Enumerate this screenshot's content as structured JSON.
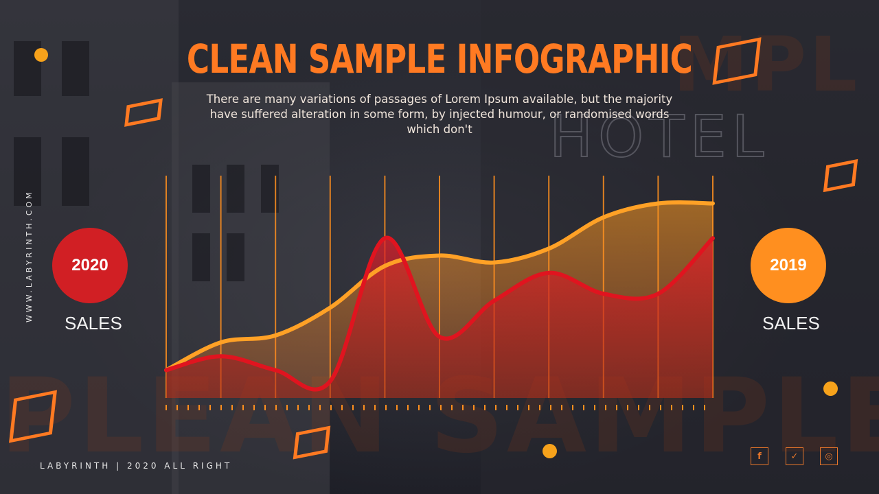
{
  "title": "CLEAN SAMPLE INFOGRAPHIC",
  "subtitle": "There are many variations of passages of Lorem Ipsum available, but the majority have suffered alteration in some form, by injected humour, or randomised words which don't",
  "side_text": "WWW.LABYRINTH.COM",
  "footer": "LABYRINTH | 2020 ALL RIGHT",
  "legend": [
    {
      "year": "2020",
      "label": "SALES",
      "color": "#d11f24"
    },
    {
      "year": "2019",
      "label": "SALES",
      "color": "#ff8f1f"
    }
  ],
  "social_icons": [
    "facebook-icon",
    "twitter-icon",
    "instagram-icon"
  ],
  "colors": {
    "accent": "#ff7a22",
    "red": "#d11f24",
    "orange": "#ff8f1f",
    "background": "#1d1e27"
  },
  "chart_data": {
    "type": "area",
    "x": [
      0,
      1,
      2,
      3,
      4,
      5,
      6,
      7,
      8,
      9,
      10
    ],
    "series": [
      {
        "name": "2020",
        "values": [
          40,
          60,
          40,
          24,
          230,
          88,
          140,
          180,
          150,
          150,
          230
        ],
        "color": "#d11f24"
      },
      {
        "name": "2019",
        "values": [
          40,
          80,
          90,
          130,
          190,
          205,
          195,
          215,
          260,
          280,
          280
        ],
        "color": "#ff8f1f"
      }
    ],
    "ylim": [
      0,
      320
    ],
    "grid": true,
    "vertical_lines": 11
  }
}
